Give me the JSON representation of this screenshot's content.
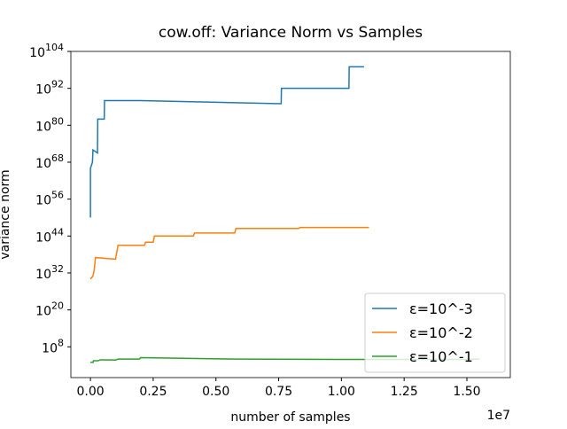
{
  "chart_data": {
    "type": "line",
    "title": "cow.off: Variance Norm vs Samples",
    "xlabel": "number of samples",
    "ylabel": "variance norm",
    "x_offset_label": "1e7",
    "yscale": "log",
    "legend": "lower right",
    "xlim": [
      -780000,
      16730000
    ],
    "xticks": [
      {
        "value": 0,
        "label": "0.00"
      },
      {
        "value": 2500000,
        "label": "0.25"
      },
      {
        "value": 5000000,
        "label": "0.50"
      },
      {
        "value": 7500000,
        "label": "0.75"
      },
      {
        "value": 10000000,
        "label": "1.00"
      },
      {
        "value": 12500000,
        "label": "1.25"
      },
      {
        "value": 15000000,
        "label": "1.50"
      }
    ],
    "ylim": [
      0.01,
      1e+104
    ],
    "yticks": [
      {
        "value": 100000000.0,
        "label": "10^8"
      },
      {
        "value": 1e+20,
        "label": "10^20"
      },
      {
        "value": 1e+32,
        "label": "10^32"
      },
      {
        "value": 1e+44,
        "label": "10^44"
      },
      {
        "value": 1e+56,
        "label": "10^56"
      },
      {
        "value": 1e+68,
        "label": "10^68"
      },
      {
        "value": 1e+80,
        "label": "10^80"
      },
      {
        "value": 1e+92,
        "label": "10^92"
      },
      {
        "value": 1e+104,
        "label": "10^104"
      }
    ],
    "series": [
      {
        "name": "ε=10^-3",
        "color": "#1f77b4",
        "x": [
          0,
          0,
          80000,
          100000,
          280000,
          290000,
          550000,
          560000,
          2000000,
          5000000,
          7600000,
          7610000,
          10300000,
          10310000,
          10900000
        ],
        "values": [
          1e+50,
          1e+66,
          1e+68,
          1e+72,
          1e+71,
          1e+82,
          1e+82,
          1e+88,
          1e+88,
          3e+87,
          1e+87,
          1e+92,
          1e+92,
          1e+99,
          1e+99
        ]
      },
      {
        "name": "ε=10^-2",
        "color": "#ff7f0e",
        "x": [
          0,
          100000,
          150000,
          200000,
          1000000,
          1100000,
          2150000,
          2200000,
          2500000,
          2550000,
          4100000,
          4150000,
          5750000,
          5800000,
          8300000,
          8350000,
          11100000
        ],
        "values": [
          1e+30,
          1e+31,
          1e+33,
          1e+37,
          3e+36,
          1e+41,
          1e+41,
          1e+42,
          1e+42,
          1e+44,
          1e+44,
          1e+45,
          1e+45,
          3e+46,
          3e+46,
          6e+46,
          6e+46
        ]
      },
      {
        "name": "ε=10^-1",
        "color": "#2ca02c",
        "x": [
          0,
          100000,
          120000,
          300000,
          400000,
          1000000,
          1100000,
          1950000,
          2000000,
          5800000,
          10000000,
          15000000,
          15500000
        ],
        "values": [
          1000,
          800,
          3000,
          3000,
          6000,
          5000,
          10000,
          10000,
          30000,
          10000,
          8000,
          8000,
          10000
        ]
      }
    ]
  }
}
